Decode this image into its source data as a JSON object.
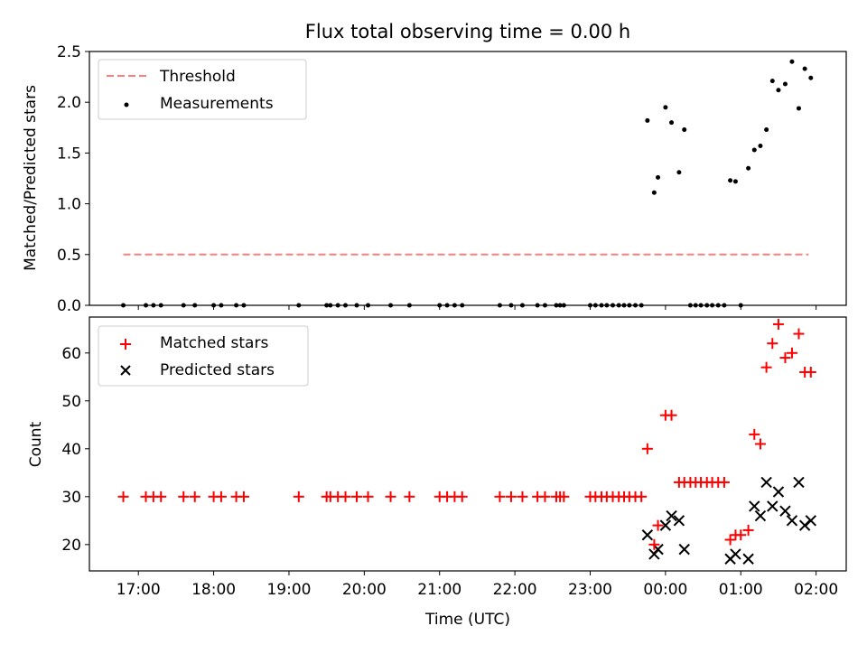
{
  "chart_data": [
    {
      "type": "scatter",
      "title": "Flux total observing time = 0.00 h",
      "xlabel": "",
      "ylabel": "Matched/Predicted stars",
      "xlim": [
        16.35,
        26.4
      ],
      "ylim": [
        0,
        2.5
      ],
      "yticks": [
        "0.0",
        "0.5",
        "1.0",
        "1.5",
        "2.0",
        "2.5"
      ],
      "legend": {
        "placement": "top-left",
        "entries": [
          "Threshold",
          "Measurements"
        ]
      },
      "threshold": {
        "name": "Threshold",
        "y": 0.5,
        "x_range": [
          16.8,
          25.9
        ],
        "color": "#ff7f7f"
      },
      "series": [
        {
          "name": "Measurements",
          "color": "#000000",
          "points": [
            [
              16.8,
              0
            ],
            [
              17.1,
              0
            ],
            [
              17.2,
              0
            ],
            [
              17.3,
              0
            ],
            [
              17.6,
              0
            ],
            [
              17.75,
              0
            ],
            [
              18.0,
              0
            ],
            [
              18.1,
              0
            ],
            [
              18.3,
              0
            ],
            [
              18.4,
              0
            ],
            [
              19.13,
              0
            ],
            [
              19.5,
              0
            ],
            [
              19.55,
              0
            ],
            [
              19.65,
              0
            ],
            [
              19.75,
              0
            ],
            [
              19.9,
              0
            ],
            [
              20.05,
              0
            ],
            [
              20.35,
              0
            ],
            [
              20.6,
              0
            ],
            [
              21.0,
              0
            ],
            [
              21.1,
              0
            ],
            [
              21.2,
              0
            ],
            [
              21.3,
              0
            ],
            [
              21.8,
              0
            ],
            [
              21.95,
              0
            ],
            [
              22.1,
              0
            ],
            [
              22.3,
              0
            ],
            [
              22.4,
              0
            ],
            [
              22.55,
              0
            ],
            [
              22.6,
              0
            ],
            [
              22.65,
              0
            ],
            [
              23.0,
              0
            ],
            [
              23.07,
              0
            ],
            [
              23.15,
              0
            ],
            [
              23.22,
              0
            ],
            [
              23.3,
              0
            ],
            [
              23.38,
              0
            ],
            [
              23.45,
              0
            ],
            [
              23.52,
              0
            ],
            [
              23.6,
              0
            ],
            [
              23.68,
              0
            ],
            [
              23.76,
              1.82
            ],
            [
              23.85,
              1.11
            ],
            [
              23.9,
              1.26
            ],
            [
              24.0,
              1.95
            ],
            [
              24.08,
              1.8
            ],
            [
              24.18,
              1.31
            ],
            [
              24.25,
              1.73
            ],
            [
              24.33,
              0
            ],
            [
              24.4,
              0
            ],
            [
              24.47,
              0
            ],
            [
              24.55,
              0
            ],
            [
              24.62,
              0
            ],
            [
              24.7,
              0
            ],
            [
              24.78,
              0
            ],
            [
              24.86,
              1.23
            ],
            [
              24.93,
              1.22
            ],
            [
              25.0,
              0
            ],
            [
              25.1,
              1.35
            ],
            [
              25.18,
              1.53
            ],
            [
              25.26,
              1.57
            ],
            [
              25.34,
              1.73
            ],
            [
              25.42,
              2.21
            ],
            [
              25.5,
              2.12
            ],
            [
              25.59,
              2.18
            ],
            [
              25.68,
              2.4
            ],
            [
              25.77,
              1.94
            ],
            [
              25.85,
              2.33
            ],
            [
              25.93,
              2.24
            ]
          ]
        }
      ]
    },
    {
      "type": "scatter",
      "title": "",
      "xlabel": "Time (UTC)",
      "ylabel": "Count",
      "xlim": [
        16.35,
        26.4
      ],
      "ylim": [
        14.5,
        67.5
      ],
      "yticks": [
        "20",
        "30",
        "40",
        "50",
        "60"
      ],
      "xticks": [
        "17:00",
        "18:00",
        "19:00",
        "20:00",
        "21:00",
        "22:00",
        "23:00",
        "00:00",
        "01:00",
        "02:00"
      ],
      "legend": {
        "placement": "top-left",
        "entries": [
          "Matched stars",
          "Predicted stars"
        ]
      },
      "series": [
        {
          "name": "Matched stars",
          "marker": "+",
          "color": "#ff0000",
          "points": [
            [
              16.8,
              30
            ],
            [
              17.1,
              30
            ],
            [
              17.2,
              30
            ],
            [
              17.3,
              30
            ],
            [
              17.6,
              30
            ],
            [
              17.75,
              30
            ],
            [
              18.0,
              30
            ],
            [
              18.1,
              30
            ],
            [
              18.3,
              30
            ],
            [
              18.4,
              30
            ],
            [
              19.13,
              30
            ],
            [
              19.5,
              30
            ],
            [
              19.55,
              30
            ],
            [
              19.65,
              30
            ],
            [
              19.75,
              30
            ],
            [
              19.9,
              30
            ],
            [
              20.05,
              30
            ],
            [
              20.35,
              30
            ],
            [
              20.6,
              30
            ],
            [
              21.0,
              30
            ],
            [
              21.1,
              30
            ],
            [
              21.2,
              30
            ],
            [
              21.3,
              30
            ],
            [
              21.8,
              30
            ],
            [
              21.95,
              30
            ],
            [
              22.1,
              30
            ],
            [
              22.3,
              30
            ],
            [
              22.4,
              30
            ],
            [
              22.55,
              30
            ],
            [
              22.6,
              30
            ],
            [
              22.65,
              30
            ],
            [
              23.0,
              30
            ],
            [
              23.07,
              30
            ],
            [
              23.15,
              30
            ],
            [
              23.22,
              30
            ],
            [
              23.3,
              30
            ],
            [
              23.38,
              30
            ],
            [
              23.45,
              30
            ],
            [
              23.52,
              30
            ],
            [
              23.6,
              30
            ],
            [
              23.68,
              30
            ],
            [
              23.76,
              40
            ],
            [
              23.85,
              20
            ],
            [
              23.9,
              24
            ],
            [
              24.0,
              47
            ],
            [
              24.08,
              47
            ],
            [
              24.18,
              33
            ],
            [
              24.25,
              33
            ],
            [
              24.33,
              33
            ],
            [
              24.4,
              33
            ],
            [
              24.47,
              33
            ],
            [
              24.55,
              33
            ],
            [
              24.62,
              33
            ],
            [
              24.7,
              33
            ],
            [
              24.78,
              33
            ],
            [
              24.86,
              21
            ],
            [
              24.93,
              22
            ],
            [
              25.0,
              22
            ],
            [
              25.1,
              23
            ],
            [
              25.18,
              43
            ],
            [
              25.26,
              41
            ],
            [
              25.34,
              57
            ],
            [
              25.42,
              62
            ],
            [
              25.5,
              66
            ],
            [
              25.59,
              59
            ],
            [
              25.68,
              60
            ],
            [
              25.77,
              64
            ],
            [
              25.85,
              56
            ],
            [
              25.93,
              56
            ]
          ]
        },
        {
          "name": "Predicted stars",
          "marker": "x",
          "color": "#000000",
          "points": [
            [
              23.76,
              22
            ],
            [
              23.85,
              18
            ],
            [
              23.9,
              19
            ],
            [
              24.0,
              24
            ],
            [
              24.08,
              26
            ],
            [
              24.18,
              25
            ],
            [
              24.25,
              19
            ],
            [
              24.86,
              17
            ],
            [
              24.93,
              18
            ],
            [
              25.1,
              17
            ],
            [
              25.18,
              28
            ],
            [
              25.26,
              26
            ],
            [
              25.34,
              33
            ],
            [
              25.42,
              28
            ],
            [
              25.5,
              31
            ],
            [
              25.59,
              27
            ],
            [
              25.68,
              25
            ],
            [
              25.77,
              33
            ],
            [
              25.85,
              24
            ],
            [
              25.93,
              25
            ]
          ]
        }
      ]
    }
  ]
}
